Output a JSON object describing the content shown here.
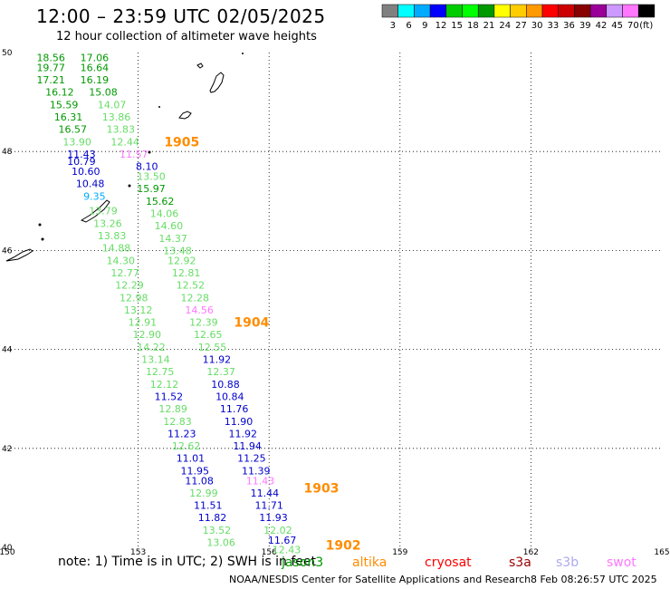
{
  "header": {
    "title": "12:00 – 23:59 UTC 02/05/2025",
    "subtitle": "12 hour collection of altimeter wave heights"
  },
  "legend": {
    "unit": "(ft)",
    "bins": [
      {
        "color": "#808080",
        "label": "3"
      },
      {
        "color": "#00ffff",
        "label": "6"
      },
      {
        "color": "#00aaff",
        "label": "9"
      },
      {
        "color": "#0000ff",
        "label": "12"
      },
      {
        "color": "#00cc00",
        "label": "15"
      },
      {
        "color": "#00ff00",
        "label": "18"
      },
      {
        "color": "#009900",
        "label": "21"
      },
      {
        "color": "#ffff00",
        "label": "24"
      },
      {
        "color": "#ffcc00",
        "label": "27"
      },
      {
        "color": "#ff9900",
        "label": "30"
      },
      {
        "color": "#ff0000",
        "label": "33"
      },
      {
        "color": "#cc0000",
        "label": "36"
      },
      {
        "color": "#880000",
        "label": "39"
      },
      {
        "color": "#990099",
        "label": "42"
      },
      {
        "color": "#cc99ff",
        "label": "45"
      },
      {
        "color": "#ff77ff",
        "label": "70"
      },
      {
        "color": "#000000",
        "label": ""
      }
    ]
  },
  "map": {
    "lon_range": [
      150,
      165
    ],
    "lat_range": [
      40,
      50
    ],
    "lon_ticks": [
      150,
      153,
      156,
      159,
      162,
      165
    ],
    "lat_ticks": [
      50,
      48,
      46,
      44,
      42,
      40
    ],
    "lon_tick_labels": [
      "150",
      "153",
      "156",
      "159",
      "162",
      "165"
    ],
    "lat_tick_labels": [
      "50",
      "48",
      "46",
      "44",
      "42",
      "40"
    ],
    "gridlines": true
  },
  "chart_data": {
    "type": "scatter",
    "title": "12:00 – 23:59 UTC 02/05/2025",
    "subtitle": "12 hour collection of altimeter wave heights",
    "xlim": [
      150,
      165
    ],
    "ylim": [
      40,
      50
    ],
    "points": [
      {
        "lon": 151.0,
        "lat": 49.9,
        "v": "18.56",
        "c": "#009900"
      },
      {
        "lon": 152.0,
        "lat": 49.9,
        "v": "17.06",
        "c": "#009900"
      },
      {
        "lon": 151.0,
        "lat": 49.7,
        "v": "19.77",
        "c": "#009900"
      },
      {
        "lon": 152.0,
        "lat": 49.7,
        "v": "16.64",
        "c": "#009900"
      },
      {
        "lon": 151.0,
        "lat": 49.45,
        "v": "17.21",
        "c": "#009900"
      },
      {
        "lon": 152.0,
        "lat": 49.45,
        "v": "16.19",
        "c": "#009900"
      },
      {
        "lon": 151.2,
        "lat": 49.2,
        "v": "16.12",
        "c": "#009900"
      },
      {
        "lon": 152.2,
        "lat": 49.2,
        "v": "15.08",
        "c": "#009900"
      },
      {
        "lon": 151.3,
        "lat": 48.95,
        "v": "15.59",
        "c": "#009900"
      },
      {
        "lon": 152.4,
        "lat": 48.95,
        "v": "14.07",
        "c": "#66dd66"
      },
      {
        "lon": 151.4,
        "lat": 48.7,
        "v": "16.31",
        "c": "#009900"
      },
      {
        "lon": 152.5,
        "lat": 48.7,
        "v": "13.86",
        "c": "#66dd66"
      },
      {
        "lon": 151.5,
        "lat": 48.45,
        "v": "16.57",
        "c": "#009900"
      },
      {
        "lon": 152.6,
        "lat": 48.45,
        "v": "13.83",
        "c": "#66dd66"
      },
      {
        "lon": 151.6,
        "lat": 48.2,
        "v": "13.90",
        "c": "#66dd66"
      },
      {
        "lon": 152.7,
        "lat": 48.2,
        "v": "12.44",
        "c": "#66dd66"
      },
      {
        "lon": 151.7,
        "lat": 47.95,
        "v": "11.43",
        "c": "#0000cc"
      },
      {
        "lon": 152.9,
        "lat": 47.95,
        "v": "11.57",
        "c": "#ff77ff"
      },
      {
        "lon": 151.7,
        "lat": 47.8,
        "v": "10.79",
        "c": "#0000cc"
      },
      {
        "lon": 153.2,
        "lat": 47.7,
        "v": "8.10",
        "c": "#0000cc"
      },
      {
        "lon": 151.8,
        "lat": 47.6,
        "v": "10.60",
        "c": "#0000cc"
      },
      {
        "lon": 153.3,
        "lat": 47.5,
        "v": "13.50",
        "c": "#66dd66"
      },
      {
        "lon": 151.9,
        "lat": 47.35,
        "v": "10.48",
        "c": "#0000cc"
      },
      {
        "lon": 153.3,
        "lat": 47.25,
        "v": "15.97",
        "c": "#009900"
      },
      {
        "lon": 152.0,
        "lat": 47.1,
        "v": "9.35",
        "c": "#00aaff"
      },
      {
        "lon": 153.5,
        "lat": 47.0,
        "v": "15.62",
        "c": "#009900"
      },
      {
        "lon": 152.2,
        "lat": 46.8,
        "v": "13.79",
        "c": "#66dd66"
      },
      {
        "lon": 153.6,
        "lat": 46.75,
        "v": "14.06",
        "c": "#66dd66"
      },
      {
        "lon": 152.3,
        "lat": 46.55,
        "v": "13.26",
        "c": "#66dd66"
      },
      {
        "lon": 153.7,
        "lat": 46.5,
        "v": "14.60",
        "c": "#66dd66"
      },
      {
        "lon": 152.4,
        "lat": 46.3,
        "v": "13.83",
        "c": "#66dd66"
      },
      {
        "lon": 153.8,
        "lat": 46.25,
        "v": "14.37",
        "c": "#66dd66"
      },
      {
        "lon": 152.5,
        "lat": 46.05,
        "v": "14.88",
        "c": "#66dd66"
      },
      {
        "lon": 153.9,
        "lat": 46.0,
        "v": "13.48",
        "c": "#66dd66"
      },
      {
        "lon": 152.6,
        "lat": 45.8,
        "v": "14.30",
        "c": "#66dd66"
      },
      {
        "lon": 154.0,
        "lat": 45.8,
        "v": "12.92",
        "c": "#66dd66"
      },
      {
        "lon": 152.7,
        "lat": 45.55,
        "v": "12.77",
        "c": "#66dd66"
      },
      {
        "lon": 154.1,
        "lat": 45.55,
        "v": "12.81",
        "c": "#66dd66"
      },
      {
        "lon": 152.8,
        "lat": 45.3,
        "v": "12.29",
        "c": "#66dd66"
      },
      {
        "lon": 154.2,
        "lat": 45.3,
        "v": "12.52",
        "c": "#66dd66"
      },
      {
        "lon": 152.9,
        "lat": 45.05,
        "v": "12.98",
        "c": "#66dd66"
      },
      {
        "lon": 154.3,
        "lat": 45.05,
        "v": "12.28",
        "c": "#66dd66"
      },
      {
        "lon": 153.0,
        "lat": 44.8,
        "v": "13.12",
        "c": "#66dd66"
      },
      {
        "lon": 154.4,
        "lat": 44.8,
        "v": "14.56",
        "c": "#ff77ff"
      },
      {
        "lon": 153.1,
        "lat": 44.55,
        "v": "12.91",
        "c": "#66dd66"
      },
      {
        "lon": 154.5,
        "lat": 44.55,
        "v": "12.39",
        "c": "#66dd66"
      },
      {
        "lon": 153.2,
        "lat": 44.3,
        "v": "12.90",
        "c": "#66dd66"
      },
      {
        "lon": 154.6,
        "lat": 44.3,
        "v": "12.65",
        "c": "#66dd66"
      },
      {
        "lon": 153.3,
        "lat": 44.05,
        "v": "14.22",
        "c": "#66dd66"
      },
      {
        "lon": 154.7,
        "lat": 44.05,
        "v": "12.55",
        "c": "#66dd66"
      },
      {
        "lon": 153.4,
        "lat": 43.8,
        "v": "13.14",
        "c": "#66dd66"
      },
      {
        "lon": 154.8,
        "lat": 43.8,
        "v": "11.92",
        "c": "#0000cc"
      },
      {
        "lon": 153.5,
        "lat": 43.55,
        "v": "12.75",
        "c": "#66dd66"
      },
      {
        "lon": 154.9,
        "lat": 43.55,
        "v": "12.37",
        "c": "#66dd66"
      },
      {
        "lon": 153.6,
        "lat": 43.3,
        "v": "12.12",
        "c": "#66dd66"
      },
      {
        "lon": 155.0,
        "lat": 43.3,
        "v": "10.88",
        "c": "#0000cc"
      },
      {
        "lon": 153.7,
        "lat": 43.05,
        "v": "11.52",
        "c": "#0000cc"
      },
      {
        "lon": 155.1,
        "lat": 43.05,
        "v": "10.84",
        "c": "#0000cc"
      },
      {
        "lon": 153.8,
        "lat": 42.8,
        "v": "12.89",
        "c": "#66dd66"
      },
      {
        "lon": 155.2,
        "lat": 42.8,
        "v": "11.76",
        "c": "#0000cc"
      },
      {
        "lon": 153.9,
        "lat": 42.55,
        "v": "12.83",
        "c": "#66dd66"
      },
      {
        "lon": 155.3,
        "lat": 42.55,
        "v": "11.90",
        "c": "#0000cc"
      },
      {
        "lon": 154.0,
        "lat": 42.3,
        "v": "11.23",
        "c": "#0000cc"
      },
      {
        "lon": 155.4,
        "lat": 42.3,
        "v": "11.92",
        "c": "#0000cc"
      },
      {
        "lon": 154.1,
        "lat": 42.05,
        "v": "12.62",
        "c": "#66dd66"
      },
      {
        "lon": 155.5,
        "lat": 42.05,
        "v": "11.94",
        "c": "#0000cc"
      },
      {
        "lon": 154.2,
        "lat": 41.8,
        "v": "11.01",
        "c": "#0000cc"
      },
      {
        "lon": 155.6,
        "lat": 41.8,
        "v": "11.25",
        "c": "#0000cc"
      },
      {
        "lon": 154.3,
        "lat": 41.55,
        "v": "11.95",
        "c": "#0000cc"
      },
      {
        "lon": 155.7,
        "lat": 41.55,
        "v": "11.39",
        "c": "#0000cc"
      },
      {
        "lon": 154.4,
        "lat": 41.35,
        "v": "11.08",
        "c": "#0000cc"
      },
      {
        "lon": 155.8,
        "lat": 41.35,
        "v": "11.43",
        "c": "#ff77ff"
      },
      {
        "lon": 154.5,
        "lat": 41.1,
        "v": "12.99",
        "c": "#66dd66"
      },
      {
        "lon": 155.9,
        "lat": 41.1,
        "v": "11.44",
        "c": "#0000cc"
      },
      {
        "lon": 154.6,
        "lat": 40.85,
        "v": "11.51",
        "c": "#0000cc"
      },
      {
        "lon": 156.0,
        "lat": 40.85,
        "v": "11.71",
        "c": "#0000cc"
      },
      {
        "lon": 154.7,
        "lat": 40.6,
        "v": "11.82",
        "c": "#0000cc"
      },
      {
        "lon": 156.1,
        "lat": 40.6,
        "v": "11.93",
        "c": "#0000cc"
      },
      {
        "lon": 154.8,
        "lat": 40.35,
        "v": "13.52",
        "c": "#66dd66"
      },
      {
        "lon": 156.2,
        "lat": 40.35,
        "v": "12.02",
        "c": "#66dd66"
      },
      {
        "lon": 154.9,
        "lat": 40.1,
        "v": "13.06",
        "c": "#66dd66"
      },
      {
        "lon": 156.3,
        "lat": 40.15,
        "v": "11.67",
        "c": "#0000cc"
      },
      {
        "lon": 156.4,
        "lat": 39.95,
        "v": "12.43",
        "c": "#66dd66"
      }
    ],
    "cyclones": [
      {
        "lon": 154.0,
        "lat": 48.2,
        "label": "1905"
      },
      {
        "lon": 155.6,
        "lat": 44.55,
        "label": "1904"
      },
      {
        "lon": 157.2,
        "lat": 41.2,
        "label": "1903"
      },
      {
        "lon": 157.7,
        "lat": 40.05,
        "label": "1902"
      }
    ]
  },
  "footer": {
    "note": "note:  1) Time is in UTC;  2) SWH is in feet",
    "satellites": [
      {
        "name": "jason3",
        "color": "#009900"
      },
      {
        "name": "altika",
        "color": "#ff8c00"
      },
      {
        "name": "cryosat",
        "color": "#ff0000"
      },
      {
        "name": "s3a",
        "color": "#990000"
      },
      {
        "name": "s3b",
        "color": "#aaaaee"
      },
      {
        "name": "swot",
        "color": "#ff77ff"
      }
    ],
    "credit": "NOAA/NESDIS Center for Satellite Applications and Research",
    "timestamp": "8 Feb 08:26:57 UTC 2025"
  }
}
